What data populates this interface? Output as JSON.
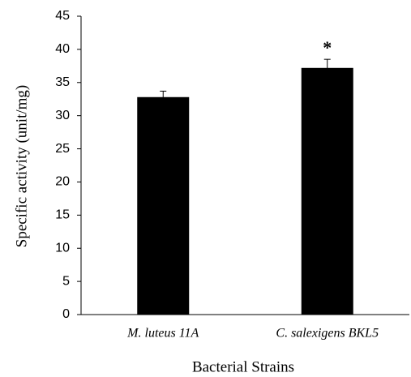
{
  "chart_data": {
    "type": "bar",
    "x_label": "Bacterial Strains",
    "y_label": "Specific activity (unit/mg)",
    "categories": [
      "M. luteus 11A",
      "C. salexigens BKL5"
    ],
    "values": [
      32.8,
      37.2
    ],
    "errors": [
      0.9,
      1.3
    ],
    "color": "#000000",
    "annotations": [
      {
        "category": "C. salexigens BKL5",
        "text": "*"
      }
    ],
    "ylim": [
      0,
      45
    ],
    "yticks": [
      0,
      5,
      10,
      15,
      20,
      25,
      30,
      35,
      40,
      45
    ],
    "grid": false
  }
}
